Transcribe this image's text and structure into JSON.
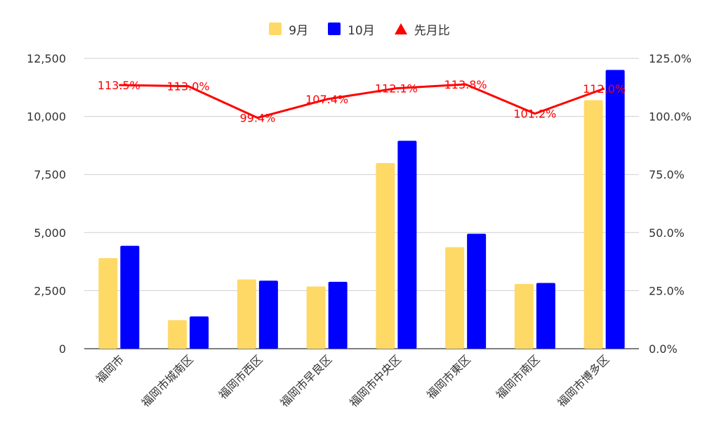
{
  "chart_data": {
    "type": "bar",
    "categories": [
      "福岡市",
      "福岡市城南区",
      "福岡市西区",
      "福岡市早良区",
      "福岡市中央区",
      "福岡市東区",
      "福岡市南区",
      "福岡市博多区"
    ],
    "series": [
      {
        "name": "9月",
        "type": "bar",
        "axis": "left",
        "color": "#FFD966",
        "values": [
          3900,
          1230,
          2980,
          2680,
          7990,
          4370,
          2790,
          10700
        ]
      },
      {
        "name": "10月",
        "type": "bar",
        "axis": "left",
        "color": "#0000FF",
        "values": [
          4430,
          1390,
          2930,
          2880,
          8950,
          4950,
          2830,
          12000
        ]
      },
      {
        "name": "先月比",
        "type": "line",
        "axis": "right",
        "color": "#FF0000",
        "values": [
          113.5,
          113.0,
          99.4,
          107.4,
          112.1,
          113.8,
          101.2,
          112.0
        ],
        "labels": [
          "113.5%",
          "113.0%",
          "99.4%",
          "107.4%",
          "112.1%",
          "113.8%",
          "101.2%",
          "112.0%"
        ]
      }
    ],
    "y_left": {
      "min": 0,
      "max": 12500,
      "ticks": [
        "0",
        "2,500",
        "5,000",
        "7,500",
        "10,000",
        "12,500"
      ]
    },
    "y_right": {
      "min": 0,
      "max": 125,
      "ticks": [
        "0.0%",
        "25.0%",
        "50.0%",
        "75.0%",
        "100.0%",
        "125.0%"
      ]
    },
    "grid": true,
    "legend_position": "top-center"
  }
}
